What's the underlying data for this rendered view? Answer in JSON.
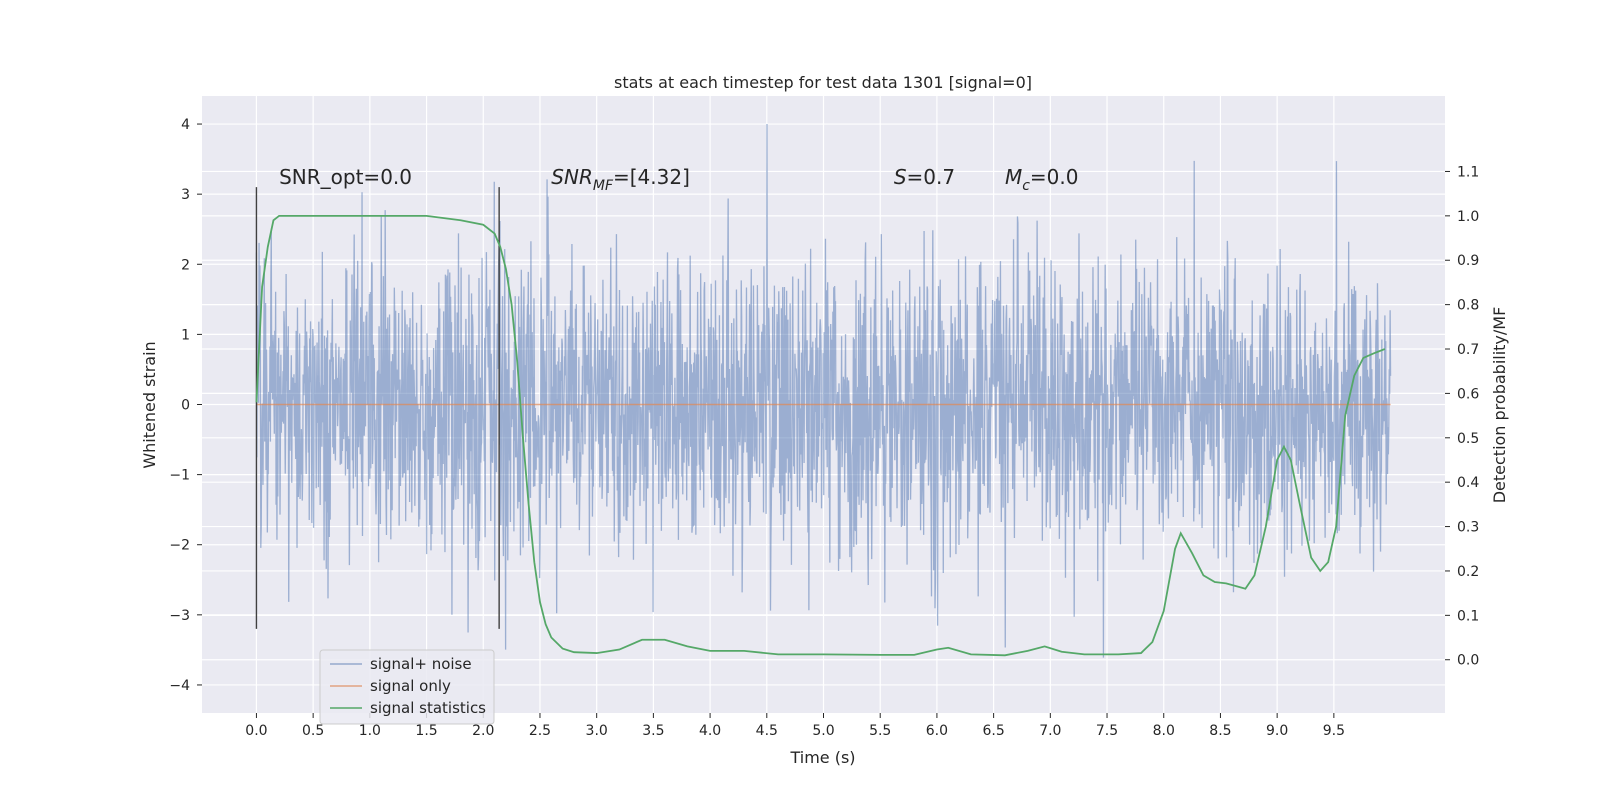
{
  "chart_data": {
    "type": "line",
    "title": "stats at each timestep for test data 1301 [signal=0]",
    "xlabel": "Time (s)",
    "ylabel": "Whitened strain",
    "y2label": "Detection probability/MF",
    "xlim": [
      -0.48,
      10.48
    ],
    "ylim": [
      -4.4,
      4.4
    ],
    "y2lim": [
      -0.12,
      1.27
    ],
    "xticks": [
      0.0,
      0.5,
      1.0,
      1.5,
      2.0,
      2.5,
      3.0,
      3.5,
      4.0,
      4.5,
      5.0,
      5.5,
      6.0,
      6.5,
      7.0,
      7.5,
      8.0,
      8.5,
      9.0,
      9.5
    ],
    "xtick_labels": [
      "0.0",
      "0.5",
      "1.0",
      "1.5",
      "2.0",
      "2.5",
      "3.0",
      "3.5",
      "4.0",
      "4.5",
      "5.0",
      "5.5",
      "6.0",
      "6.5",
      "7.0",
      "7.5",
      "8.0",
      "8.5",
      "9.0",
      "9.5"
    ],
    "yticks": [
      -4,
      -3,
      -2,
      -1,
      0,
      1,
      2,
      3,
      4
    ],
    "ytick_labels": [
      "−4",
      "−3",
      "−2",
      "−1",
      "0",
      "1",
      "2",
      "3",
      "4"
    ],
    "y2ticks": [
      0.0,
      0.1,
      0.2,
      0.3,
      0.4,
      0.5,
      0.6,
      0.7,
      0.8,
      0.9,
      1.0,
      1.1
    ],
    "y2tick_labels": [
      "0.0",
      "0.1",
      "0.2",
      "0.3",
      "0.4",
      "0.5",
      "0.6",
      "0.7",
      "0.8",
      "0.9",
      "1.0",
      "1.1"
    ],
    "grid": true,
    "legend_position": "lower-left",
    "series": [
      {
        "name": "signal+ noise",
        "color": "#4c72b0",
        "axis": "left",
        "style": "noisy-strain",
        "x_range": [
          0.0,
          10.0
        ],
        "envelope_max": 4.0,
        "envelope_min": -4.1,
        "typical_band": [
          -1.3,
          1.3
        ]
      },
      {
        "name": "signal only",
        "color": "#dd8452",
        "axis": "left",
        "x": [
          0.0,
          10.0
        ],
        "y": [
          0.0,
          0.0
        ]
      },
      {
        "name": "signal statistics",
        "color": "#55a868",
        "axis": "right",
        "x": [
          0.0,
          0.05,
          0.1,
          0.15,
          0.2,
          0.3,
          0.5,
          1.0,
          1.5,
          1.8,
          2.0,
          2.1,
          2.15,
          2.2,
          2.25,
          2.3,
          2.35,
          2.4,
          2.45,
          2.5,
          2.55,
          2.6,
          2.7,
          2.8,
          3.0,
          3.2,
          3.4,
          3.6,
          3.8,
          4.0,
          4.3,
          4.6,
          5.0,
          5.5,
          5.8,
          6.0,
          6.1,
          6.3,
          6.6,
          6.8,
          6.95,
          7.1,
          7.3,
          7.6,
          7.8,
          7.9,
          8.0,
          8.1,
          8.15,
          8.25,
          8.35,
          8.45,
          8.55,
          8.65,
          8.72,
          8.8,
          8.9,
          9.0,
          9.06,
          9.12,
          9.2,
          9.3,
          9.38,
          9.45,
          9.52,
          9.6,
          9.68,
          9.76,
          9.85,
          9.95
        ],
        "y": [
          0.58,
          0.84,
          0.93,
          0.99,
          1.0,
          1.0,
          1.0,
          1.0,
          1.0,
          0.99,
          0.98,
          0.96,
          0.93,
          0.88,
          0.8,
          0.67,
          0.5,
          0.35,
          0.22,
          0.13,
          0.08,
          0.05,
          0.025,
          0.017,
          0.015,
          0.023,
          0.045,
          0.045,
          0.03,
          0.02,
          0.02,
          0.012,
          0.012,
          0.011,
          0.011,
          0.023,
          0.027,
          0.012,
          0.01,
          0.02,
          0.03,
          0.018,
          0.012,
          0.012,
          0.015,
          0.04,
          0.11,
          0.25,
          0.285,
          0.24,
          0.19,
          0.175,
          0.172,
          0.165,
          0.16,
          0.19,
          0.3,
          0.45,
          0.48,
          0.45,
          0.35,
          0.23,
          0.2,
          0.22,
          0.3,
          0.55,
          0.64,
          0.68,
          0.69,
          0.7
        ]
      }
    ],
    "vlines": [
      {
        "x": 0.0,
        "ymin": -3.2,
        "ymax": 3.1,
        "color": "#404040"
      },
      {
        "x": 2.14,
        "ymin": -3.2,
        "ymax": 3.1,
        "color": "#404040"
      }
    ],
    "annotations": [
      {
        "text": "SNR_opt=0.0",
        "x": 0.2,
        "y": 3.1
      },
      {
        "text": "SNR",
        "sub": "MF",
        "suffix": "=[4.32]",
        "x": 2.6,
        "y": 3.1,
        "italic_head": true
      },
      {
        "text": "S",
        "suffix": "=0.7",
        "x": 5.62,
        "y": 3.1,
        "italic_head": true
      },
      {
        "text": "M",
        "sub": "c",
        "suffix": "=0.0",
        "x": 6.6,
        "y": 3.1,
        "italic_head": true
      }
    ]
  }
}
